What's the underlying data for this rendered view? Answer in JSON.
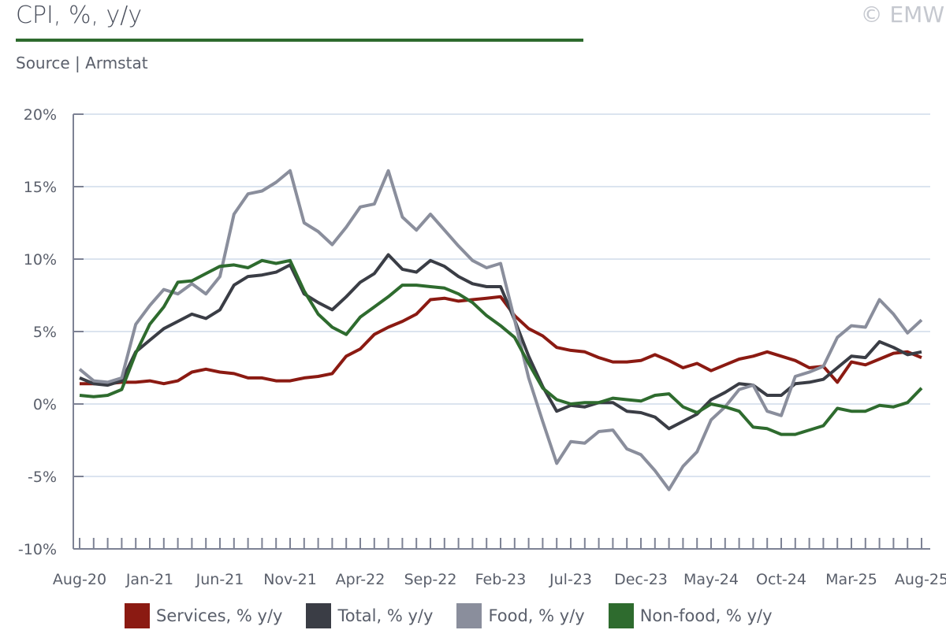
{
  "header": {
    "title": "CPI, %, y/y",
    "copyright": "© EMW",
    "source": "Source | Armstat"
  },
  "chart_data": {
    "type": "line",
    "title": "CPI, %, y/y",
    "xlabel": "",
    "ylabel": "",
    "ylim": [
      -10,
      20
    ],
    "y_ticks": [
      20,
      15,
      10,
      5,
      0,
      -5,
      -10
    ],
    "y_tick_labels": [
      "20%",
      "15%",
      "10%",
      "5%",
      "0%",
      "-5%",
      "-10%"
    ],
    "x_tick_labels": [
      "Aug-20",
      "Jan-21",
      "Jun-21",
      "Nov-21",
      "Apr-22",
      "Sep-22",
      "Feb-23",
      "Jul-23",
      "Dec-23",
      "May-24",
      "Oct-24",
      "Mar-25",
      "Aug-25"
    ],
    "x_start": "Aug-20",
    "x_end": "Aug-25",
    "frequency": "monthly",
    "grid": true,
    "legend": "bottom",
    "series": [
      {
        "name": "Services, % y/y",
        "color": "#8b1a12",
        "values": [
          1.4,
          1.4,
          1.4,
          1.5,
          1.5,
          1.6,
          1.4,
          1.6,
          2.2,
          2.4,
          2.2,
          2.1,
          1.8,
          1.8,
          1.6,
          1.6,
          1.8,
          1.9,
          2.1,
          3.3,
          3.8,
          4.8,
          5.3,
          5.7,
          6.2,
          7.2,
          7.3,
          7.1,
          7.2,
          7.3,
          7.4,
          6.1,
          5.2,
          4.7,
          3.9,
          3.7,
          3.6,
          3.2,
          2.9,
          2.9,
          3.0,
          3.4,
          3.0,
          2.5,
          2.8,
          2.3,
          2.7,
          3.1,
          3.3,
          3.6,
          3.3,
          3.0,
          2.5,
          2.6,
          1.5,
          2.9,
          2.7,
          3.1,
          3.5,
          3.6,
          3.2
        ]
      },
      {
        "name": "Total, % y/y",
        "color": "#3a3d45",
        "values": [
          1.8,
          1.4,
          1.3,
          1.6,
          3.6,
          4.4,
          5.2,
          5.7,
          6.2,
          5.9,
          6.5,
          8.2,
          8.8,
          8.9,
          9.1,
          9.6,
          7.6,
          7.0,
          6.5,
          7.4,
          8.4,
          9.0,
          10.3,
          9.3,
          9.1,
          9.9,
          9.5,
          8.8,
          8.3,
          8.1,
          8.1,
          5.8,
          3.3,
          1.2,
          -0.5,
          -0.1,
          -0.2,
          0.1,
          0.1,
          -0.5,
          -0.6,
          -0.9,
          -1.7,
          -1.2,
          -0.7,
          0.3,
          0.8,
          1.4,
          1.3,
          0.6,
          0.6,
          1.4,
          1.5,
          1.7,
          2.5,
          3.3,
          3.2,
          4.3,
          3.9,
          3.4,
          3.6
        ]
      },
      {
        "name": "Food, % y/y",
        "color": "#8a8e9c",
        "values": [
          2.4,
          1.6,
          1.5,
          1.8,
          5.5,
          6.8,
          7.9,
          7.6,
          8.3,
          7.6,
          8.8,
          13.1,
          14.5,
          14.7,
          15.3,
          16.1,
          12.5,
          11.9,
          11.0,
          12.2,
          13.6,
          13.8,
          16.1,
          12.9,
          12.0,
          13.1,
          12.0,
          10.9,
          9.9,
          9.4,
          9.7,
          5.8,
          1.8,
          -1.2,
          -4.1,
          -2.6,
          -2.7,
          -1.9,
          -1.8,
          -3.1,
          -3.5,
          -4.6,
          -5.9,
          -4.3,
          -3.3,
          -1.1,
          -0.2,
          1.0,
          1.3,
          -0.5,
          -0.8,
          1.9,
          2.2,
          2.6,
          4.6,
          5.4,
          5.3,
          7.2,
          6.2,
          4.9,
          5.8
        ]
      },
      {
        "name": "Non-food, % y/y",
        "color": "#2e6b2e",
        "values": [
          0.6,
          0.5,
          0.6,
          1.0,
          3.5,
          5.5,
          6.7,
          8.4,
          8.5,
          9.0,
          9.5,
          9.6,
          9.4,
          9.9,
          9.7,
          9.9,
          7.8,
          6.2,
          5.3,
          4.8,
          6.0,
          6.7,
          7.4,
          8.2,
          8.2,
          8.1,
          8.0,
          7.6,
          7.0,
          6.1,
          5.4,
          4.6,
          2.8,
          1.1,
          0.3,
          0.0,
          0.1,
          0.1,
          0.4,
          0.3,
          0.2,
          0.6,
          0.7,
          -0.2,
          -0.6,
          0.0,
          -0.2,
          -0.5,
          -1.6,
          -1.7,
          -2.1,
          -2.1,
          -1.8,
          -1.5,
          -0.3,
          -0.5,
          -0.5,
          -0.1,
          -0.2,
          0.1,
          1.1
        ]
      }
    ]
  }
}
